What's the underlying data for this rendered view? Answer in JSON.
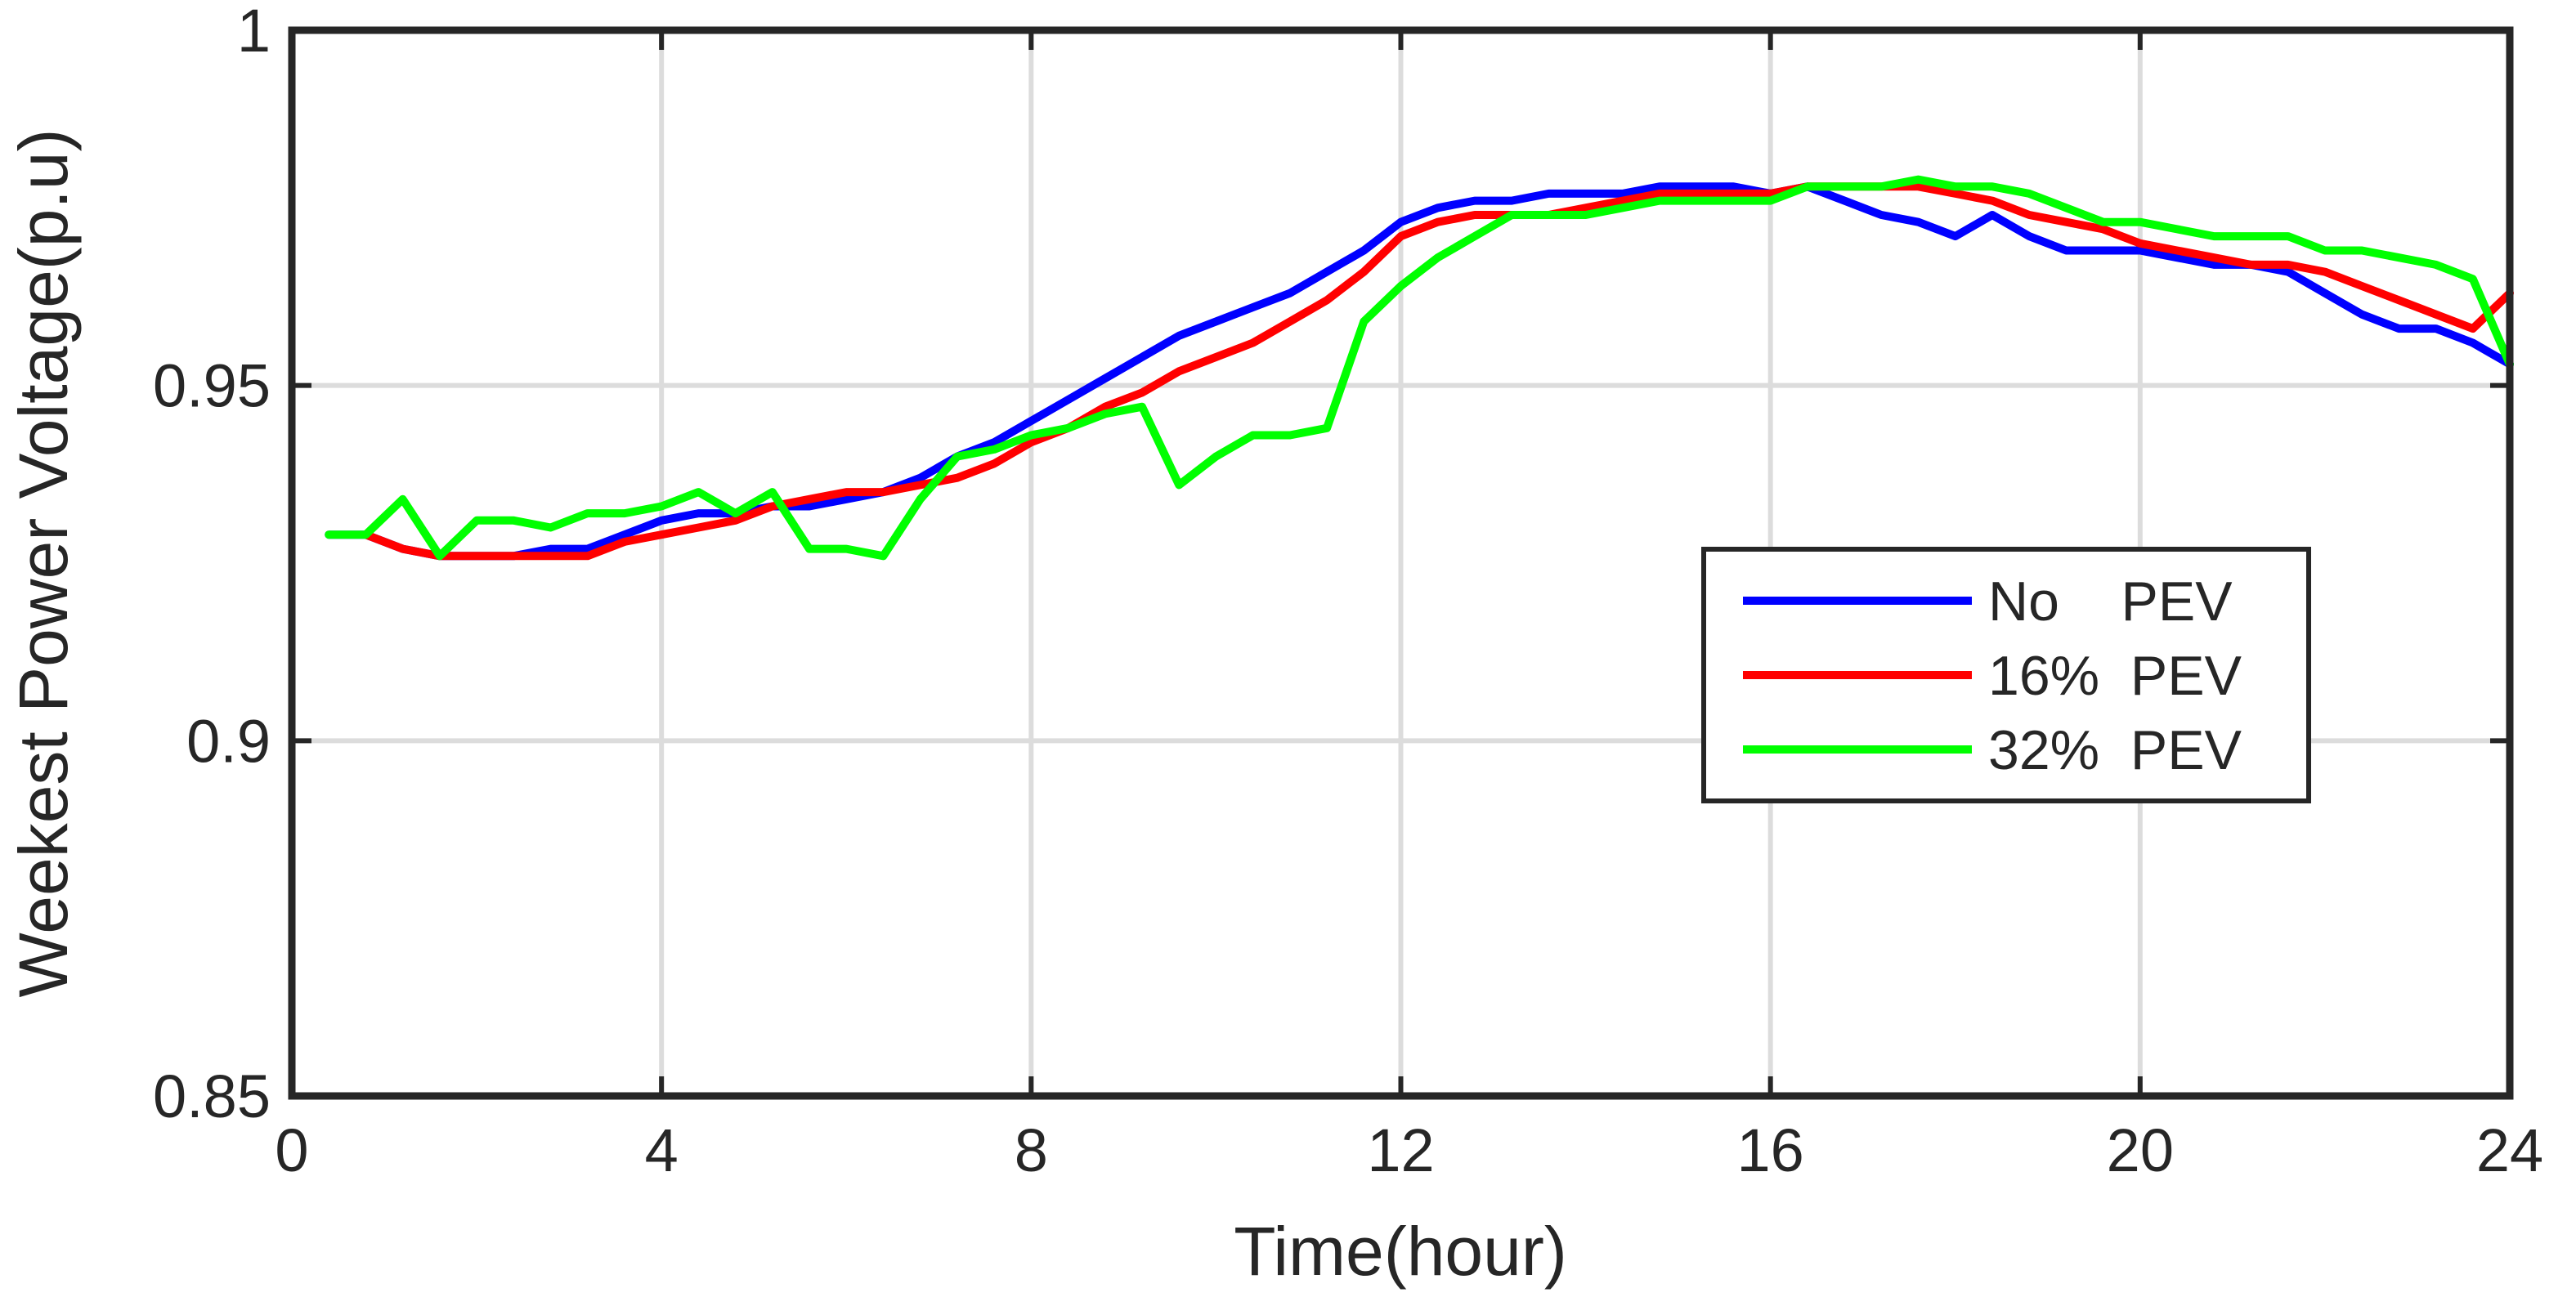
{
  "chart_data": {
    "type": "line",
    "xlabel": "Time(hour)",
    "ylabel": "Weekest Power Voltage(p.u)",
    "xlim": [
      0,
      24
    ],
    "ylim": [
      0.85,
      1
    ],
    "xticks": [
      0,
      4,
      8,
      12,
      16,
      20,
      24
    ],
    "xtick_labels": [
      "0",
      "4",
      "8",
      "12",
      "16",
      "20",
      "24"
    ],
    "yticks": [
      0.85,
      0.9,
      0.95,
      1
    ],
    "ytick_labels": [
      "0.85",
      "0.9",
      "0.95",
      "1"
    ],
    "grid": true,
    "legend_position": "right-middle",
    "series": [
      {
        "name": "No    PEV",
        "color": "#0000ff",
        "x": [
          0.4,
          0.8,
          1.2,
          1.6,
          2.0,
          2.4,
          2.8,
          3.2,
          3.6,
          4.0,
          4.4,
          4.8,
          5.2,
          5.6,
          6.0,
          6.4,
          6.8,
          7.2,
          7.6,
          8.0,
          8.4,
          8.8,
          9.2,
          9.6,
          10.0,
          10.4,
          10.8,
          11.2,
          11.6,
          12.0,
          12.4,
          12.8,
          13.2,
          13.6,
          14.0,
          14.4,
          14.8,
          15.2,
          15.6,
          16.0,
          16.4,
          16.8,
          17.2,
          17.6,
          18.0,
          18.4,
          18.8,
          19.2,
          19.6,
          20.0,
          20.4,
          20.8,
          21.2,
          21.6,
          22.0,
          22.4,
          22.8,
          23.2,
          23.6,
          24.0
        ],
        "y": [
          0.929,
          0.929,
          0.927,
          0.926,
          0.926,
          0.926,
          0.927,
          0.927,
          0.929,
          0.931,
          0.932,
          0.932,
          0.933,
          0.933,
          0.934,
          0.935,
          0.937,
          0.94,
          0.942,
          0.945,
          0.948,
          0.951,
          0.954,
          0.957,
          0.959,
          0.961,
          0.963,
          0.966,
          0.969,
          0.973,
          0.975,
          0.976,
          0.976,
          0.977,
          0.977,
          0.977,
          0.978,
          0.978,
          0.978,
          0.977,
          0.978,
          0.976,
          0.974,
          0.973,
          0.971,
          0.974,
          0.971,
          0.969,
          0.969,
          0.969,
          0.968,
          0.967,
          0.967,
          0.966,
          0.963,
          0.96,
          0.958,
          0.958,
          0.956,
          0.953
        ]
      },
      {
        "name": "16%  PEV",
        "color": "#ff0000",
        "x": [
          0.8,
          1.2,
          1.6,
          2.0,
          2.4,
          2.8,
          3.2,
          3.6,
          4.0,
          4.4,
          4.8,
          5.2,
          5.6,
          6.0,
          6.4,
          6.8,
          7.2,
          7.6,
          8.0,
          8.4,
          8.8,
          9.2,
          9.6,
          10.0,
          10.4,
          10.8,
          11.2,
          11.6,
          12.0,
          12.4,
          12.8,
          13.2,
          13.6,
          14.0,
          14.4,
          14.8,
          15.2,
          15.6,
          16.0,
          16.4,
          16.8,
          17.2,
          17.6,
          18.0,
          18.4,
          18.8,
          19.2,
          19.6,
          20.0,
          20.4,
          20.8,
          21.2,
          21.6,
          22.0,
          22.4,
          22.8,
          23.2,
          23.6,
          24.0
        ],
        "y": [
          0.929,
          0.927,
          0.926,
          0.926,
          0.926,
          0.926,
          0.926,
          0.928,
          0.929,
          0.93,
          0.931,
          0.933,
          0.934,
          0.935,
          0.935,
          0.936,
          0.937,
          0.939,
          0.942,
          0.944,
          0.947,
          0.949,
          0.952,
          0.954,
          0.956,
          0.959,
          0.962,
          0.966,
          0.971,
          0.973,
          0.974,
          0.974,
          0.974,
          0.975,
          0.976,
          0.977,
          0.977,
          0.977,
          0.977,
          0.978,
          0.978,
          0.978,
          0.978,
          0.977,
          0.976,
          0.974,
          0.973,
          0.972,
          0.97,
          0.969,
          0.968,
          0.967,
          0.967,
          0.966,
          0.964,
          0.962,
          0.96,
          0.958,
          0.963
        ]
      },
      {
        "name": "32%  PEV",
        "color": "#00ff00",
        "x": [
          0.4,
          0.8,
          1.2,
          1.6,
          2.0,
          2.4,
          2.8,
          3.2,
          3.6,
          4.0,
          4.4,
          4.8,
          5.2,
          5.6,
          6.0,
          6.4,
          6.8,
          7.2,
          7.6,
          8.0,
          8.4,
          8.8,
          9.2,
          9.6,
          10.0,
          10.4,
          10.8,
          11.2,
          11.6,
          12.0,
          12.4,
          12.8,
          13.2,
          13.6,
          14.0,
          14.4,
          14.8,
          15.2,
          15.6,
          16.0,
          16.4,
          16.8,
          17.2,
          17.6,
          18.0,
          18.4,
          18.8,
          19.2,
          19.6,
          20.0,
          20.4,
          20.8,
          21.2,
          21.6,
          22.0,
          22.4,
          22.8,
          23.2,
          23.6,
          24.0
        ],
        "y": [
          0.929,
          0.929,
          0.934,
          0.926,
          0.931,
          0.931,
          0.93,
          0.932,
          0.932,
          0.933,
          0.935,
          0.932,
          0.935,
          0.927,
          0.927,
          0.926,
          0.934,
          0.94,
          0.941,
          0.943,
          0.944,
          0.946,
          0.947,
          0.936,
          0.94,
          0.943,
          0.943,
          0.944,
          0.959,
          0.964,
          0.968,
          0.971,
          0.974,
          0.974,
          0.974,
          0.975,
          0.976,
          0.976,
          0.976,
          0.976,
          0.978,
          0.978,
          0.978,
          0.979,
          0.978,
          0.978,
          0.977,
          0.975,
          0.973,
          0.973,
          0.972,
          0.971,
          0.971,
          0.971,
          0.969,
          0.969,
          0.968,
          0.967,
          0.965,
          0.953
        ]
      }
    ]
  }
}
